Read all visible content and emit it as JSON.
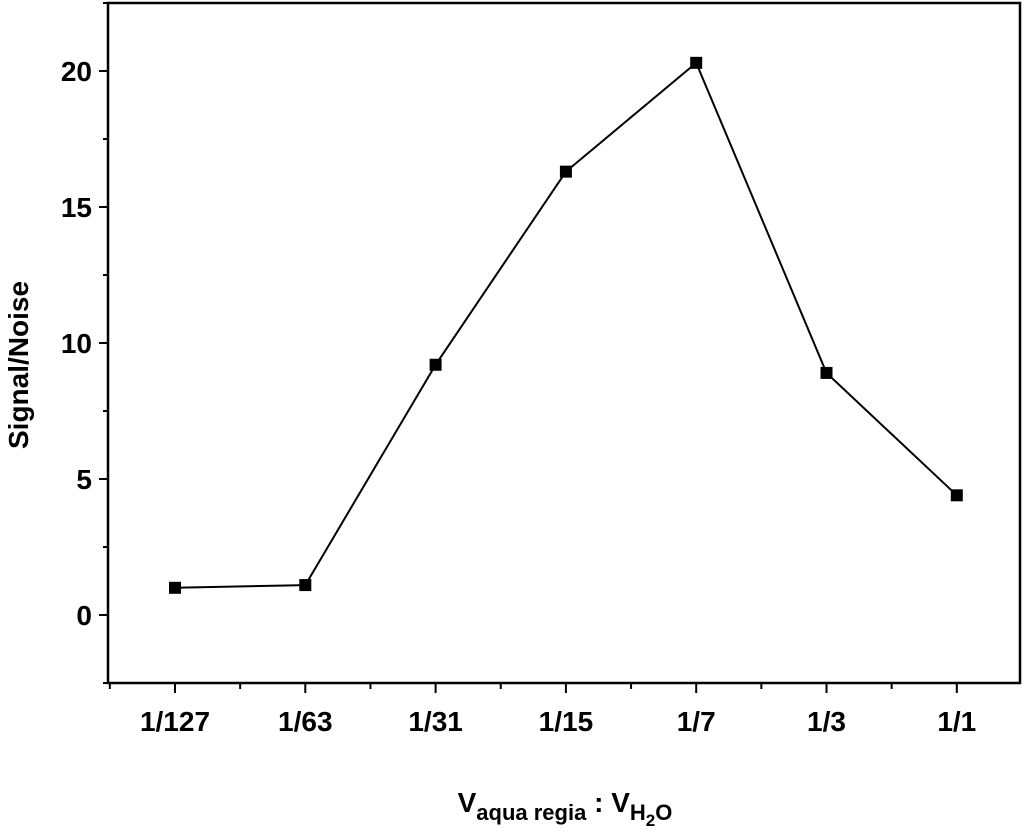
{
  "chart_data": {
    "type": "line",
    "categories": [
      "1/127",
      "1/63",
      "1/31",
      "1/15",
      "1/7",
      "1/3",
      "1/1"
    ],
    "series": [
      {
        "values": [
          1.0,
          1.1,
          9.2,
          16.3,
          20.3,
          8.9,
          4.4
        ],
        "marker": "square",
        "color": "#000000"
      }
    ],
    "ylabel": "Signal/Noise",
    "xlabel": {
      "v1": "V",
      "v1_sub": "aqua regia",
      "sep": " : ",
      "v2": "V",
      "v2_sub": "H",
      "v2_subsub": "2",
      "v2_tail": "O"
    },
    "ylim": [
      -2.5,
      22.5
    ],
    "yticks": [
      "0",
      "5",
      "10",
      "15",
      "20"
    ],
    "grid": false
  }
}
